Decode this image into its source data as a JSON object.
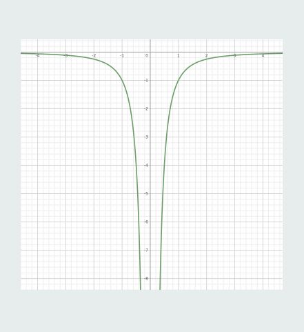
{
  "chart_data": {
    "type": "line",
    "function": "y = -1/x^2",
    "title": "",
    "xlabel": "",
    "ylabel": "",
    "xlim": [
      -4.6,
      4.7
    ],
    "ylim": [
      -8.4,
      0.45
    ],
    "grid": true,
    "x_ticks": [
      "-4",
      "-3",
      "-2",
      "-1",
      "0",
      "1",
      "2",
      "3",
      "4"
    ],
    "y_ticks": [
      "-1",
      "-2",
      "-3",
      "-4",
      "-5",
      "-6",
      "-7",
      "-8"
    ],
    "series": [
      {
        "color": "#6a9d68",
        "points": [
          [
            -4.6,
            -0.047
          ],
          [
            -4,
            -0.063
          ],
          [
            -3,
            -0.111
          ],
          [
            -2.5,
            -0.16
          ],
          [
            -2,
            -0.25
          ],
          [
            -1.5,
            -0.444
          ],
          [
            -1.2,
            -0.694
          ],
          [
            -1,
            -1
          ],
          [
            -0.8,
            -1.563
          ],
          [
            -0.7,
            -2.041
          ],
          [
            -0.6,
            -2.778
          ],
          [
            -0.5,
            -4
          ],
          [
            -0.45,
            -4.938
          ],
          [
            -0.4,
            -6.25
          ],
          [
            -0.35,
            -8.163
          ],
          [
            0.35,
            -8.163
          ],
          [
            0.4,
            -6.25
          ],
          [
            0.45,
            -4.938
          ],
          [
            0.5,
            -4
          ],
          [
            0.6,
            -2.778
          ],
          [
            0.7,
            -2.041
          ],
          [
            0.8,
            -1.563
          ],
          [
            1,
            -1
          ],
          [
            1.2,
            -0.694
          ],
          [
            1.5,
            -0.444
          ],
          [
            2,
            -0.25
          ],
          [
            2.5,
            -0.16
          ],
          [
            3,
            -0.111
          ],
          [
            4,
            -0.063
          ],
          [
            4.7,
            -0.045
          ]
        ]
      }
    ]
  }
}
